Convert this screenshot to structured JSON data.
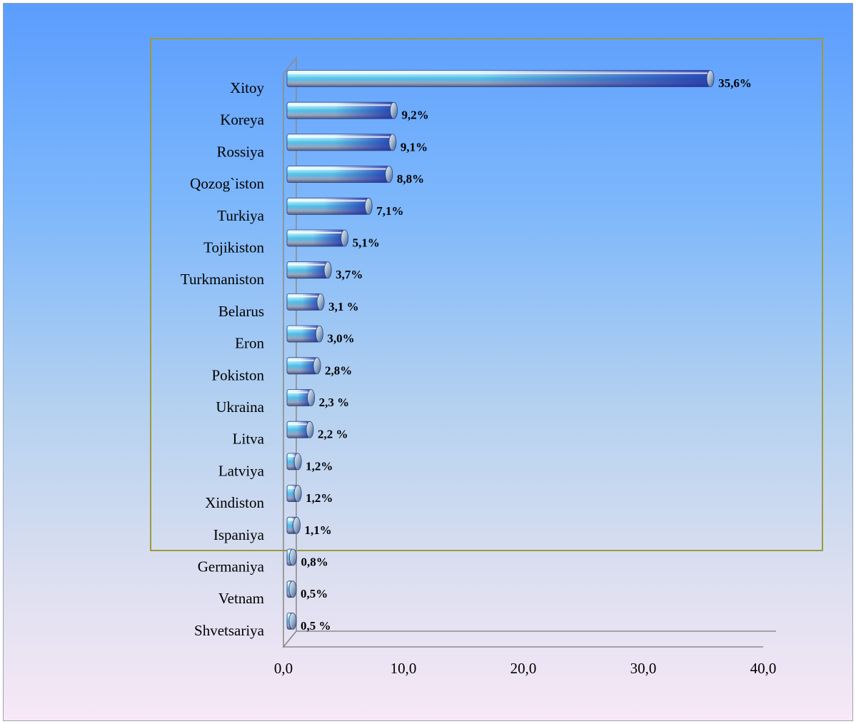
{
  "chart_data": {
    "type": "bar",
    "orientation": "horizontal",
    "categories": [
      "Xitoy",
      "Koreya",
      "Rossiya",
      "Qozog`iston",
      "Turkiya",
      "Tojikiston",
      "Turkmaniston",
      "Belarus",
      "Eron",
      "Pokiston",
      "Ukraina",
      "Litva",
      "Latviya",
      "Xindiston",
      "Ispaniya",
      "Germaniya",
      "Vetnam",
      "Shvetsariya"
    ],
    "values": [
      35.6,
      9.2,
      9.1,
      8.8,
      7.1,
      5.1,
      3.7,
      3.1,
      3.0,
      2.8,
      2.3,
      2.2,
      1.2,
      1.2,
      1.1,
      0.8,
      0.5,
      0.5
    ],
    "value_labels": [
      "35,6%",
      "9,2%",
      "9,1%",
      "8,8%",
      "7,1%",
      "5,1%",
      "3,7%",
      "3,1 %",
      "3,0%",
      "2,8%",
      "2,3 %",
      "2,2 %",
      "1,2%",
      "1,2%",
      "1,1%",
      "0,8%",
      "0,5%",
      "0,5 %"
    ],
    "xticks": [
      "0,0",
      "10,0",
      "20,0",
      "30,0",
      "40,0"
    ],
    "xlim": [
      0,
      40
    ],
    "title": "",
    "xlabel": "",
    "ylabel": "",
    "grid": false,
    "legend": "none",
    "bar_style": "3d-cylinder",
    "colors": {
      "bar_light": "#bff4ff",
      "bar_mid": "#4fc3ea",
      "bar_dark": "#1a2fa8",
      "bar_cap": "#9fb4c9",
      "axis": "#8c8c8c",
      "plot_border": "#9d9a3c",
      "background_top": "#5b9dfe",
      "background_bottom": "#f7e8f6"
    }
  }
}
